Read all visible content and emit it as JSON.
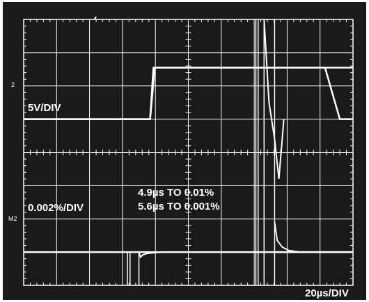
{
  "chart_data": {
    "type": "line",
    "title": "",
    "xlabel": "",
    "ylabel": "",
    "grid": true,
    "divisions": {
      "x": 10,
      "y": 8
    },
    "xlim": [
      0,
      10
    ],
    "ylim": [
      0,
      8
    ],
    "ch1_marker": "2",
    "ch2_marker": "M2",
    "labels": {
      "vscale_top": "5V/DIV",
      "vscale_bottom": "0.002%/DIV",
      "settle_1": "4.9µs TO 0.01%",
      "settle_2": "5.6µs TO 0.001%",
      "timebase": "20µs/DIV"
    },
    "series": [
      {
        "x": [
          0,
          3.84,
          3.98,
          9.5,
          10
        ],
        "y": [
          5.0,
          5.0,
          6.55,
          6.55,
          6.55
        ]
      },
      {
        "x": [
          0,
          3.84,
          3.94,
          9.15,
          9.6,
          10
        ],
        "y": [
          5.0,
          5.0,
          6.55,
          6.55,
          5.0,
          5.0
        ]
      },
      {
        "x": [
          0,
          3.15,
          3.5,
          9.38,
          9.44,
          10
        ],
        "y": [
          1.0,
          1.0,
          1.0,
          1.0,
          1.0,
          1.0
        ]
      }
    ]
  }
}
